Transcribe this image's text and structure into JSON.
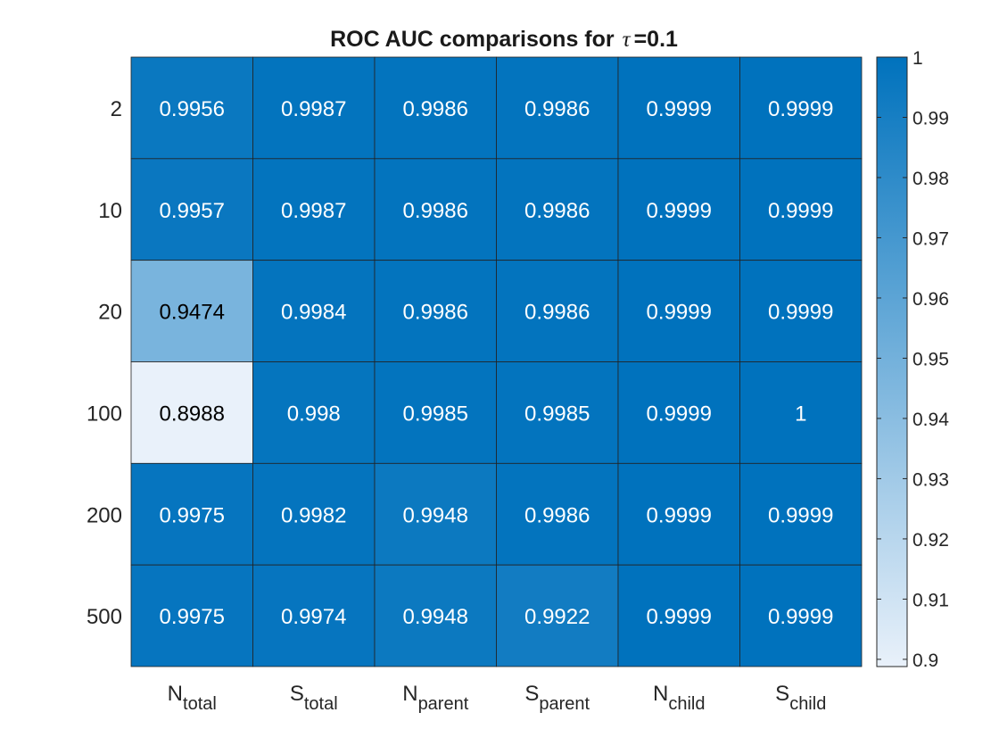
{
  "chart_data": {
    "type": "heatmap",
    "title": "ROC AUC comparisons for",
    "title_symbol": "τ",
    "title_value": "=0.1",
    "rows": [
      "2",
      "10",
      "20",
      "100",
      "200",
      "500"
    ],
    "columns": [
      {
        "base": "N",
        "sub": "total"
      },
      {
        "base": "S",
        "sub": "total"
      },
      {
        "base": "N",
        "sub": "parent"
      },
      {
        "base": "S",
        "sub": "parent"
      },
      {
        "base": "N",
        "sub": "child"
      },
      {
        "base": "S",
        "sub": "child"
      }
    ],
    "values": [
      [
        "0.9956",
        "0.9987",
        "0.9986",
        "0.9986",
        "0.9999",
        "0.9999"
      ],
      [
        "0.9957",
        "0.9987",
        "0.9986",
        "0.9986",
        "0.9999",
        "0.9999"
      ],
      [
        "0.9474",
        "0.9984",
        "0.9986",
        "0.9986",
        "0.9999",
        "0.9999"
      ],
      [
        "0.8988",
        "0.998",
        "0.9985",
        "0.9985",
        "0.9999",
        "1"
      ],
      [
        "0.9975",
        "0.9982",
        "0.9948",
        "0.9986",
        "0.9999",
        "0.9999"
      ],
      [
        "0.9975",
        "0.9974",
        "0.9948",
        "0.9922",
        "0.9999",
        "0.9999"
      ]
    ],
    "color_range": [
      0.8988,
      1
    ],
    "colormap": {
      "low": "#e9f1fa",
      "high": "#0072bd"
    },
    "colorbar": {
      "ticks": [
        "0.9",
        "0.91",
        "0.92",
        "0.93",
        "0.94",
        "0.95",
        "0.96",
        "0.97",
        "0.98",
        "0.99",
        "1"
      ]
    },
    "grid": true
  }
}
